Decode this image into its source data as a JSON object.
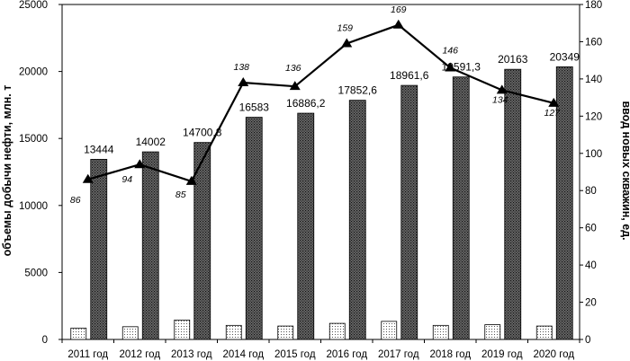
{
  "chart_data": {
    "type": "bar",
    "categories": [
      "2011 год",
      "2012 год",
      "2013 год",
      "2014 год",
      "2015 год",
      "2016 год",
      "2017 год",
      "2018 год",
      "2019 год",
      "2020 год"
    ],
    "ylabel": "объемы добычи нефти, млн. т",
    "y2label": "ввод новых скважин, ед.",
    "ylim": [
      0,
      25000
    ],
    "y2lim": [
      0,
      180
    ],
    "yticks": [
      0,
      5000,
      10000,
      15000,
      20000,
      25000
    ],
    "y2ticks": [
      0,
      20,
      40,
      60,
      80,
      100,
      120,
      140,
      160,
      180
    ],
    "grid": false,
    "series": [
      {
        "type": "bar",
        "axis": "left",
        "pattern": "dots",
        "values": [
          850,
          950,
          1450,
          1050,
          1000,
          1200,
          1350,
          1050,
          1100,
          1000
        ]
      },
      {
        "type": "bar",
        "axis": "left",
        "pattern": "crosshatch",
        "values": [
          13444,
          14002,
          14700.8,
          16583,
          16886.2,
          17852.6,
          18961.6,
          19591.3,
          20163,
          20349
        ],
        "labels": [
          "13444",
          "14002",
          "14700,8",
          "16583",
          "16886,2",
          "17852,6",
          "18961,6",
          "19591,3",
          "20163",
          "20349"
        ]
      },
      {
        "type": "line",
        "axis": "right",
        "marker": "triangle",
        "values": [
          86,
          94,
          85,
          138,
          136,
          159,
          169,
          146,
          134,
          127
        ],
        "labels": [
          "86",
          "94",
          "85",
          "138",
          "136",
          "159",
          "169",
          "146",
          "134",
          "127"
        ]
      }
    ]
  }
}
